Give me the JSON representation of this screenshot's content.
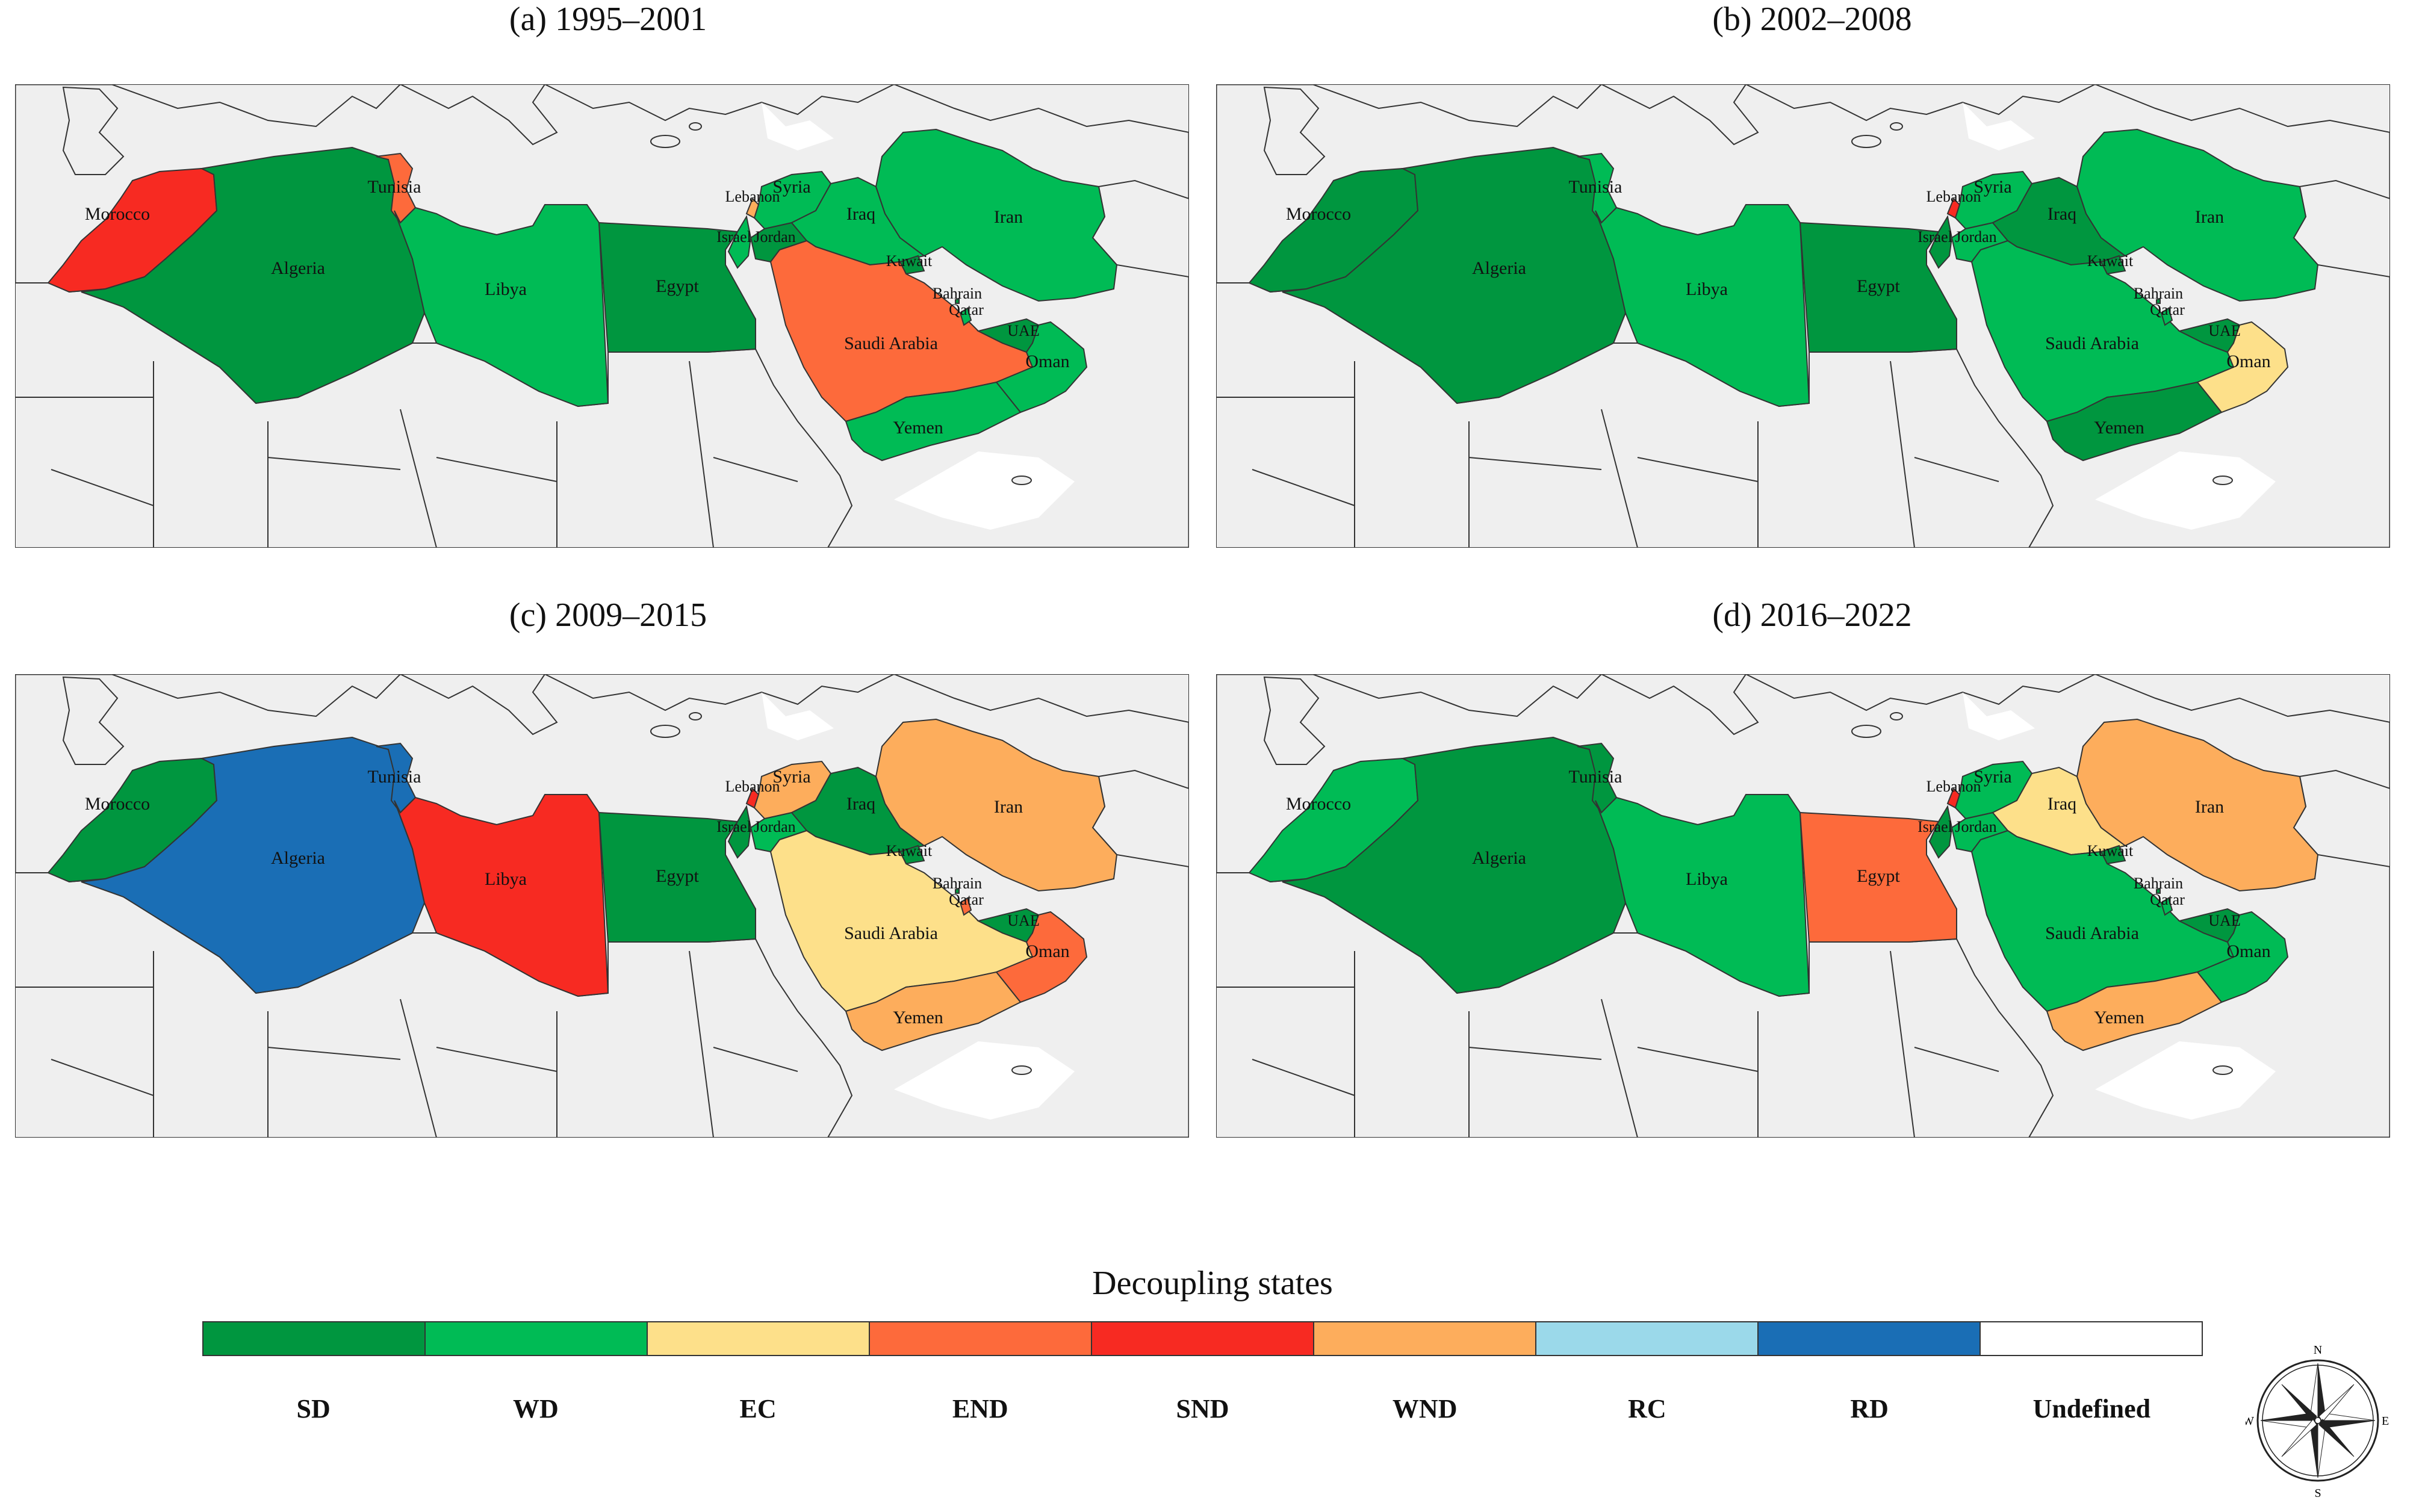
{
  "panels": [
    {
      "id": "a",
      "title": "(a) 1995–2001",
      "states": {
        "Morocco": "SND",
        "Algeria": "SD",
        "Tunisia": "END",
        "Libya": "WD",
        "Egypt": "SD",
        "Saudi Arabia": "END",
        "Yemen": "WD",
        "Oman": "WD",
        "UAE": "SD",
        "Qatar": "WD",
        "Bahrain": "SD",
        "Kuwait": "SD",
        "Iraq": "WD",
        "Iran": "WD",
        "Syria": "WD",
        "Lebanon": "WND",
        "Jordan": "SD",
        "Israel": "WD"
      }
    },
    {
      "id": "b",
      "title": "(b) 2002–2008",
      "states": {
        "Morocco": "SD",
        "Algeria": "SD",
        "Tunisia": "WD",
        "Libya": "WD",
        "Egypt": "SD",
        "Saudi Arabia": "WD",
        "Yemen": "SD",
        "Oman": "EC",
        "UAE": "SD",
        "Qatar": "WD",
        "Bahrain": "SD",
        "Kuwait": "SD",
        "Iraq": "SD",
        "Iran": "WD",
        "Syria": "WD",
        "Lebanon": "SND",
        "Jordan": "WD",
        "Israel": "SD"
      }
    },
    {
      "id": "c",
      "title": "(c) 2009–2015",
      "states": {
        "Morocco": "SD",
        "Algeria": "RD",
        "Tunisia": "RD",
        "Libya": "SND",
        "Egypt": "SD",
        "Saudi Arabia": "EC",
        "Yemen": "WND",
        "Oman": "END",
        "UAE": "SD",
        "Qatar": "END",
        "Bahrain": "SD",
        "Kuwait": "SD",
        "Iraq": "SD",
        "Iran": "WND",
        "Syria": "WND",
        "Lebanon": "SND",
        "Jordan": "WD",
        "Israel": "SD"
      }
    },
    {
      "id": "d",
      "title": "(d) 2016–2022",
      "states": {
        "Morocco": "WD",
        "Algeria": "SD",
        "Tunisia": "SD",
        "Libya": "WD",
        "Egypt": "END",
        "Saudi Arabia": "WD",
        "Yemen": "WND",
        "Oman": "WD",
        "UAE": "SD",
        "Qatar": "WD",
        "Bahrain": "SD",
        "Kuwait": "SD",
        "Iraq": "EC",
        "Iran": "WND",
        "Syria": "WD",
        "Lebanon": "SND",
        "Jordan": "WD",
        "Israel": "SD"
      }
    }
  ],
  "legend": {
    "title": "Decoupling states",
    "items": [
      {
        "code": "SD",
        "color": "#00963f"
      },
      {
        "code": "WD",
        "color": "#00bb55"
      },
      {
        "code": "EC",
        "color": "#fde08a"
      },
      {
        "code": "END",
        "color": "#fd6a3b"
      },
      {
        "code": "SND",
        "color": "#f72a22"
      },
      {
        "code": "WND",
        "color": "#fdad5c"
      },
      {
        "code": "RC",
        "color": "#9bd9ea"
      },
      {
        "code": "RD",
        "color": "#1a6eb5"
      },
      {
        "code": "Undefined",
        "color": "#ffffff"
      }
    ]
  },
  "country_labels": {
    "Morocco": "Morocco",
    "Algeria": "Algeria",
    "Tunisia": "Tunisia",
    "Libya": "Libya",
    "Egypt": "Egypt",
    "Saudi Arabia": "Saudi Arabia",
    "Yemen": "Yemen",
    "Oman": "Oman",
    "UAE": "UAE",
    "Qatar": "Qatar",
    "Bahrain": "Bahrain",
    "Kuwait": "Kuwait",
    "Iraq": "Iraq",
    "Iran": "Iran",
    "Syria": "Syria",
    "Lebanon": "Lebanon",
    "Jordan": "Jordan",
    "Israel": "Israel"
  },
  "compass": {
    "n": "N",
    "s": "S",
    "e": "E",
    "w": "W"
  }
}
